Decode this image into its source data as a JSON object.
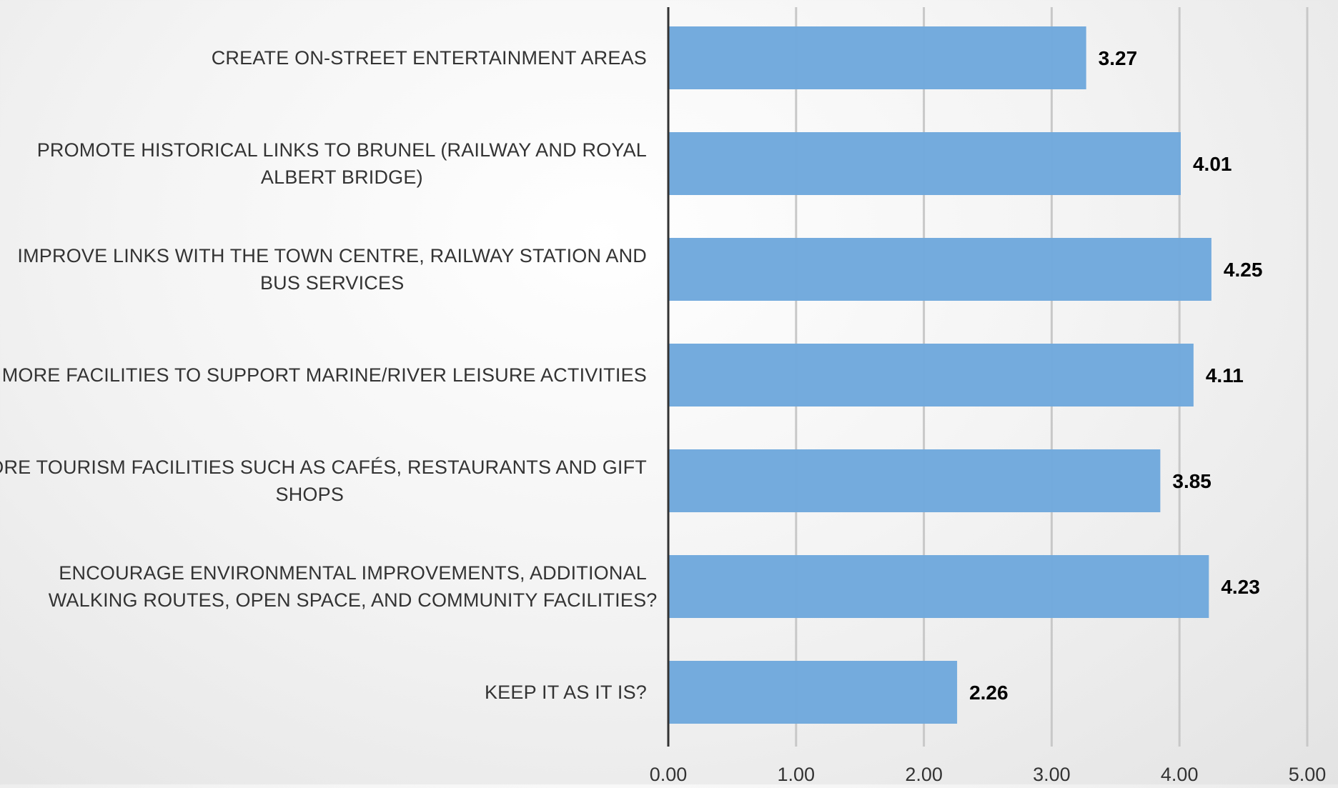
{
  "chart_data": {
    "type": "bar",
    "orientation": "horizontal",
    "title": "",
    "xlabel": "",
    "ylabel": "",
    "categories": [
      [
        "CREATE ON-STREET ENTERTAINMENT AREAS"
      ],
      [
        "PROMOTE HISTORICAL LINKS TO BRUNEL (RAILWAY AND ROYAL",
        "ALBERT BRIDGE)"
      ],
      [
        "IMPROVE LINKS WITH THE TOWN CENTRE, RAILWAY STATION AND",
        "BUS SERVICES"
      ],
      [
        "MORE FACILITIES TO SUPPORT MARINE/RIVER LEISURE ACTIVITIES"
      ],
      [
        "MORE TOURISM FACILITIES SUCH AS CAFÉS, RESTAURANTS AND GIFT",
        "SHOPS"
      ],
      [
        "ENCOURAGE ENVIRONMENTAL IMPROVEMENTS, ADDITIONAL",
        "WALKING ROUTES, OPEN SPACE, AND COMMUNITY FACILITIES?"
      ],
      [
        "KEEP IT AS IT IS?"
      ]
    ],
    "values": [
      3.27,
      4.01,
      4.25,
      4.11,
      3.85,
      4.23,
      2.26
    ],
    "value_labels": [
      "3.27",
      "4.01",
      "4.25",
      "4.11",
      "3.85",
      "4.23",
      "2.26"
    ],
    "xlim": [
      0,
      5
    ],
    "x_ticks": [
      0,
      1,
      2,
      3,
      4,
      5
    ],
    "x_tick_labels": [
      "0.00",
      "1.00",
      "2.00",
      "3.00",
      "4.00",
      "5.00"
    ],
    "grid": true,
    "legend": "none",
    "bar_color": "#6fa8dc",
    "grid_color": "#c8c8c8",
    "axis_color": "#333333"
  }
}
